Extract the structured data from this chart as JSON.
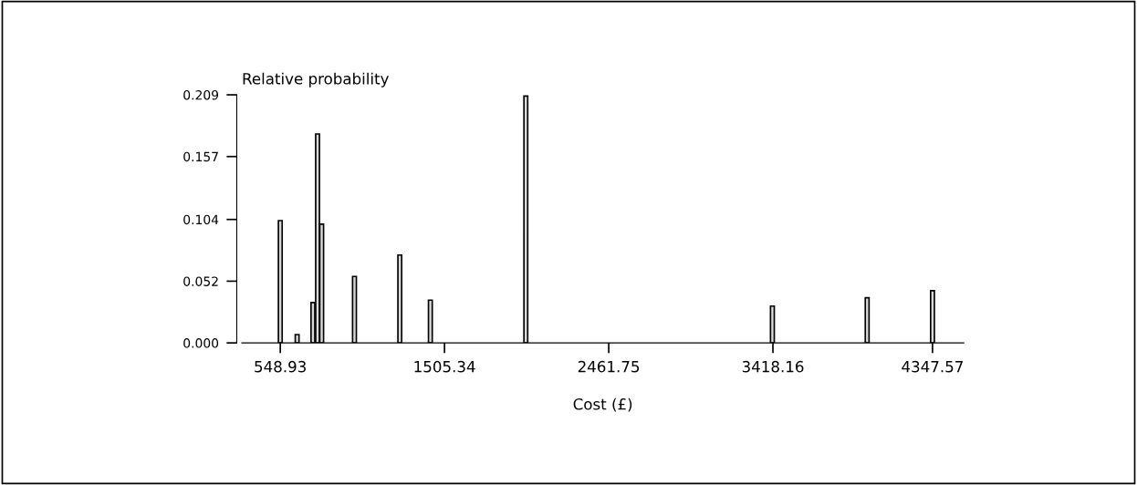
{
  "chart_data": {
    "type": "bar",
    "xlabel": "Cost (£)",
    "ylabel": "Relative probability",
    "color": "#d9d9d9",
    "x": [
      548.93,
      647,
      739,
      766,
      790,
      981,
      1245,
      1423,
      1979,
      3415,
      3967,
      4347.57
    ],
    "values": [
      0.103,
      0.007,
      0.034,
      0.176,
      0.1,
      0.056,
      0.074,
      0.036,
      0.208,
      0.031,
      0.038,
      0.044
    ],
    "xlim": [
      325,
      4530
    ],
    "ylim": [
      0,
      0.209
    ],
    "xticks": [
      548.93,
      1505.34,
      2461.75,
      3418.16,
      4347.57
    ],
    "yticks": [
      {
        "value": 0,
        "label": "0.000"
      },
      {
        "value": 0.052,
        "label": "0.052"
      },
      {
        "value": 0.104,
        "label": "0.104"
      },
      {
        "value": 0.157,
        "label": "0.157"
      },
      {
        "value": 0.209,
        "label": "0.209"
      }
    ],
    "grid": false
  }
}
